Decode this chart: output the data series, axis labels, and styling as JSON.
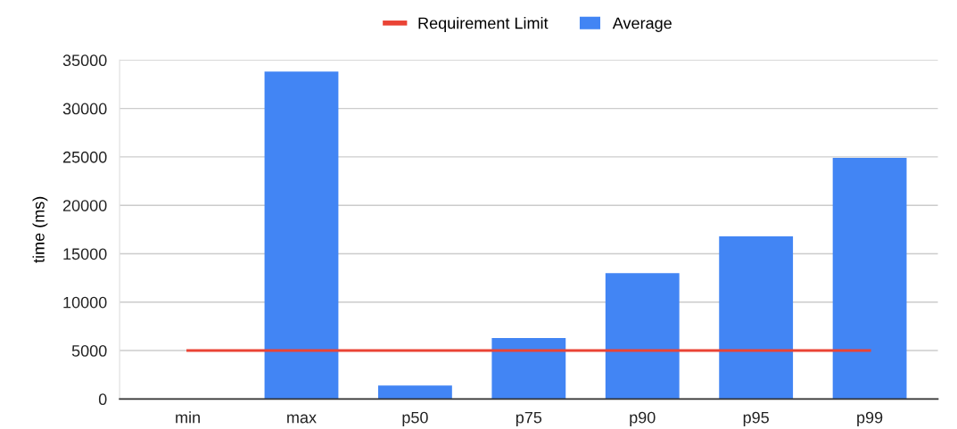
{
  "chart_data": {
    "type": "bar",
    "ylabel": "time (ms)",
    "categories": [
      "min",
      "max",
      "p50",
      "p75",
      "p90",
      "p95",
      "p99"
    ],
    "series": [
      {
        "name": "Requirement Limit",
        "type": "line",
        "color": "#ea4335",
        "values": [
          5000,
          5000,
          5000,
          5000,
          5000,
          5000,
          5000
        ]
      },
      {
        "name": "Average",
        "color": "#4285f4",
        "values": [
          0,
          33800,
          1400,
          6300,
          13000,
          16800,
          24900
        ]
      }
    ],
    "ylim": [
      0,
      35000
    ],
    "yticks": [
      0,
      5000,
      10000,
      15000,
      20000,
      25000,
      30000,
      35000
    ],
    "grid": "y",
    "legend": "top"
  }
}
